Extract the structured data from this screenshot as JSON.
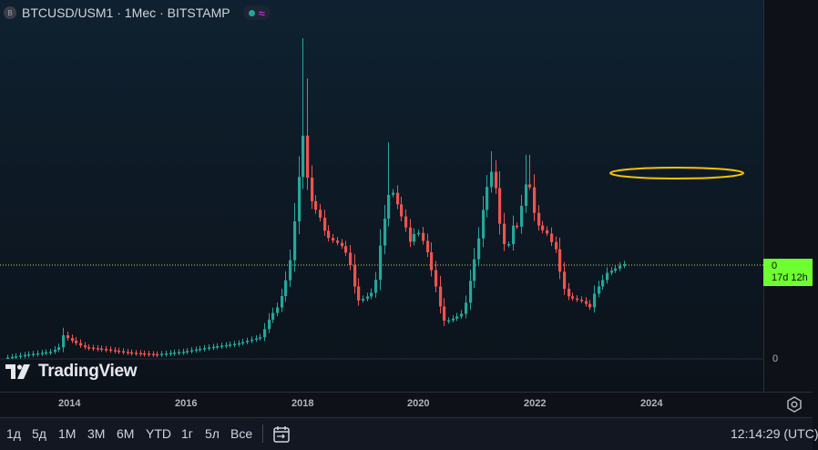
{
  "legend": {
    "symbol_logo": "B",
    "title": "BTCUSD/USM1 · 1Мес · BITSTAMP",
    "status_icon": "market-status-dot",
    "indicator_icon": "wave-icon"
  },
  "watermark": "TradingView",
  "price_scale": {
    "current_value": "0",
    "countdown": "17d 12h",
    "tick": "0",
    "label_color": "#6dff30"
  },
  "time_axis": {
    "years": [
      "2014",
      "2016",
      "2018",
      "2020",
      "2022",
      "2024"
    ]
  },
  "toolbar": {
    "ranges": [
      "1д",
      "5д",
      "1М",
      "3М",
      "6М",
      "YTD",
      "1г",
      "5л",
      "Все"
    ],
    "clock": "12:14:29 (UTC)"
  },
  "colors": {
    "up": "#26a69a",
    "down": "#ef5350",
    "annotation": "#f5c400",
    "price_line": "#c6e23a"
  },
  "annotation_shape": "ellipse"
}
